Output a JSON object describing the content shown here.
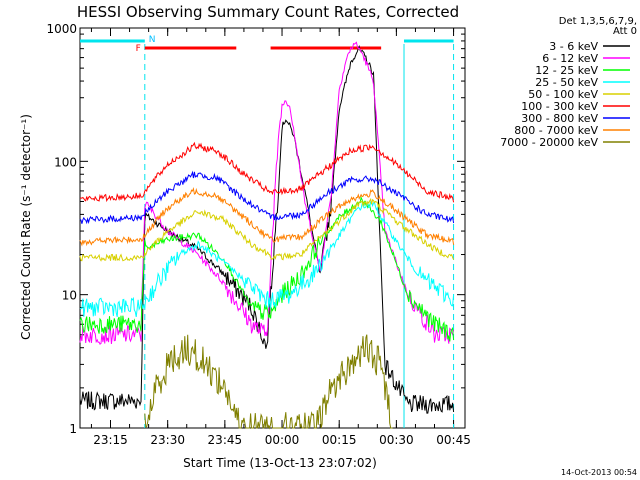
{
  "chart_data": {
    "type": "line",
    "title": "HESSI Observing Summary Count Rates, Corrected",
    "xlabel": "Start Time (13-Oct-13 23:07:02)",
    "ylabel": "Corrected Count Rate (s⁻¹ detector⁻¹)",
    "yscale": "log",
    "ylim": [
      1,
      1000
    ],
    "xlim": [
      "23:07",
      "00:48"
    ],
    "x_ticks": [
      "23:15",
      "23:30",
      "23:45",
      "00:00",
      "00:15",
      "00:30",
      "00:45"
    ],
    "y_ticks": [
      "1",
      "10",
      "100",
      "1000"
    ],
    "legend_position": "right",
    "legend_header": [
      "Det 1,3,5,6,7,9,",
      "Att 0"
    ],
    "timestamp": "14-Oct-2013 00:54",
    "markers": {
      "flare_label": "F",
      "night_label": "N"
    },
    "intervals": {
      "day": [
        [
          "23:07",
          "23:24"
        ],
        [
          "00:32",
          "00:45"
        ]
      ],
      "night": [
        "23:24",
        "00:32"
      ],
      "flare": [
        [
          "23:24",
          "23:48"
        ],
        [
          "23:57",
          "00:26"
        ]
      ]
    },
    "series": [
      {
        "name": "3 - 6 keV",
        "color": "#000000",
        "points": [
          [
            "23:07",
            1.6
          ],
          [
            "23:23",
            1.6
          ],
          [
            "23:24",
            40
          ],
          [
            "23:30",
            30
          ],
          [
            "23:38",
            22
          ],
          [
            "23:45",
            14
          ],
          [
            "23:52",
            8
          ],
          [
            "23:56",
            4
          ],
          [
            "23:59",
            60
          ],
          [
            "00:00",
            180
          ],
          [
            "00:01",
            210
          ],
          [
            "00:03",
            160
          ],
          [
            "00:06",
            60
          ],
          [
            "00:10",
            14
          ],
          [
            "00:13",
            50
          ],
          [
            "00:15",
            250
          ],
          [
            "00:18",
            550
          ],
          [
            "00:20",
            700
          ],
          [
            "00:22",
            600
          ],
          [
            "00:24",
            450
          ],
          [
            "00:27",
            3
          ],
          [
            "00:33",
            1.5
          ],
          [
            "00:45",
            1.5
          ]
        ]
      },
      {
        "name": "6 - 12 keV",
        "color": "#ff00ff",
        "points": [
          [
            "23:07",
            5
          ],
          [
            "23:23",
            5
          ],
          [
            "23:24",
            50
          ],
          [
            "23:30",
            30
          ],
          [
            "23:38",
            20
          ],
          [
            "23:45",
            12
          ],
          [
            "23:52",
            6
          ],
          [
            "23:56",
            5
          ],
          [
            "23:59",
            150
          ],
          [
            "00:00",
            260
          ],
          [
            "00:01",
            290
          ],
          [
            "00:02",
            260
          ],
          [
            "00:03",
            180
          ],
          [
            "00:06",
            50
          ],
          [
            "00:10",
            15
          ],
          [
            "00:13",
            60
          ],
          [
            "00:15",
            350
          ],
          [
            "00:17",
            600
          ],
          [
            "00:19",
            780
          ],
          [
            "00:21",
            650
          ],
          [
            "00:24",
            400
          ],
          [
            "00:27",
            30
          ],
          [
            "00:33",
            10
          ],
          [
            "00:40",
            5
          ],
          [
            "00:45",
            5
          ]
        ]
      },
      {
        "name": "12 - 25 keV",
        "color": "#00ff00",
        "points": [
          [
            "23:07",
            6
          ],
          [
            "23:23",
            6
          ],
          [
            "23:24",
            22
          ],
          [
            "23:30",
            26
          ],
          [
            "23:38",
            28
          ],
          [
            "23:45",
            18
          ],
          [
            "23:52",
            8
          ],
          [
            "23:57",
            7
          ],
          [
            "00:00",
            10
          ],
          [
            "00:05",
            14
          ],
          [
            "00:10",
            25
          ],
          [
            "00:15",
            38
          ],
          [
            "00:21",
            52
          ],
          [
            "00:26",
            35
          ],
          [
            "00:33",
            10
          ],
          [
            "00:40",
            6
          ],
          [
            "00:45",
            5
          ]
        ]
      },
      {
        "name": "25 - 50 keV",
        "color": "#00ffff",
        "points": [
          [
            "23:07",
            8
          ],
          [
            "23:23",
            8
          ],
          [
            "23:28",
            13
          ],
          [
            "23:33",
            20
          ],
          [
            "23:38",
            24
          ],
          [
            "23:44",
            18
          ],
          [
            "23:50",
            13
          ],
          [
            "23:56",
            9
          ],
          [
            "00:02",
            10
          ],
          [
            "00:08",
            14
          ],
          [
            "00:14",
            25
          ],
          [
            "00:20",
            45
          ],
          [
            "00:24",
            48
          ],
          [
            "00:30",
            25
          ],
          [
            "00:36",
            14
          ],
          [
            "00:45",
            9
          ]
        ]
      },
      {
        "name": "50 - 100 keV",
        "color": "#d8d000",
        "points": [
          [
            "23:07",
            19
          ],
          [
            "23:23",
            19
          ],
          [
            "23:30",
            30
          ],
          [
            "23:38",
            42
          ],
          [
            "23:45",
            36
          ],
          [
            "23:52",
            24
          ],
          [
            "23:58",
            19
          ],
          [
            "00:05",
            20
          ],
          [
            "00:12",
            30
          ],
          [
            "00:20",
            48
          ],
          [
            "00:24",
            50
          ],
          [
            "00:32",
            32
          ],
          [
            "00:40",
            22
          ],
          [
            "00:45",
            19
          ]
        ]
      },
      {
        "name": "100 - 300 keV",
        "color": "#ff0000",
        "points": [
          [
            "23:07",
            52
          ],
          [
            "23:23",
            55
          ],
          [
            "23:30",
            95
          ],
          [
            "23:37",
            130
          ],
          [
            "23:43",
            120
          ],
          [
            "23:50",
            80
          ],
          [
            "23:57",
            58
          ],
          [
            "00:05",
            62
          ],
          [
            "00:12",
            90
          ],
          [
            "00:18",
            120
          ],
          [
            "00:24",
            130
          ],
          [
            "00:31",
            90
          ],
          [
            "00:38",
            60
          ],
          [
            "00:45",
            52
          ]
        ]
      },
      {
        "name": "300 - 800 keV",
        "color": "#0000ff",
        "points": [
          [
            "23:07",
            36
          ],
          [
            "23:23",
            38
          ],
          [
            "23:30",
            60
          ],
          [
            "23:37",
            80
          ],
          [
            "23:43",
            75
          ],
          [
            "23:50",
            52
          ],
          [
            "23:57",
            38
          ],
          [
            "00:05",
            40
          ],
          [
            "00:12",
            58
          ],
          [
            "00:18",
            72
          ],
          [
            "00:24",
            74
          ],
          [
            "00:31",
            55
          ],
          [
            "00:38",
            40
          ],
          [
            "00:45",
            36
          ]
        ]
      },
      {
        "name": "800 - 7000 keV",
        "color": "#ff8000",
        "points": [
          [
            "23:07",
            25
          ],
          [
            "23:23",
            26
          ],
          [
            "23:30",
            45
          ],
          [
            "23:37",
            60
          ],
          [
            "23:43",
            55
          ],
          [
            "23:50",
            38
          ],
          [
            "23:57",
            26
          ],
          [
            "00:05",
            27
          ],
          [
            "00:12",
            40
          ],
          [
            "00:18",
            52
          ],
          [
            "00:24",
            58
          ],
          [
            "00:31",
            40
          ],
          [
            "00:38",
            28
          ],
          [
            "00:45",
            25
          ]
        ]
      },
      {
        "name": "7000 - 20000 keV",
        "color": "#808000",
        "points": [
          [
            "23:24",
            1.0
          ],
          [
            "23:27",
            2
          ],
          [
            "23:30",
            3
          ],
          [
            "23:35",
            4
          ],
          [
            "23:40",
            3
          ],
          [
            "23:45",
            2
          ],
          [
            "23:49",
            1.0
          ],
          [
            "00:09",
            1.0
          ],
          [
            "00:13",
            2
          ],
          [
            "00:18",
            3
          ],
          [
            "00:22",
            4
          ],
          [
            "00:26",
            3
          ],
          [
            "00:29",
            1.0
          ]
        ]
      }
    ]
  }
}
